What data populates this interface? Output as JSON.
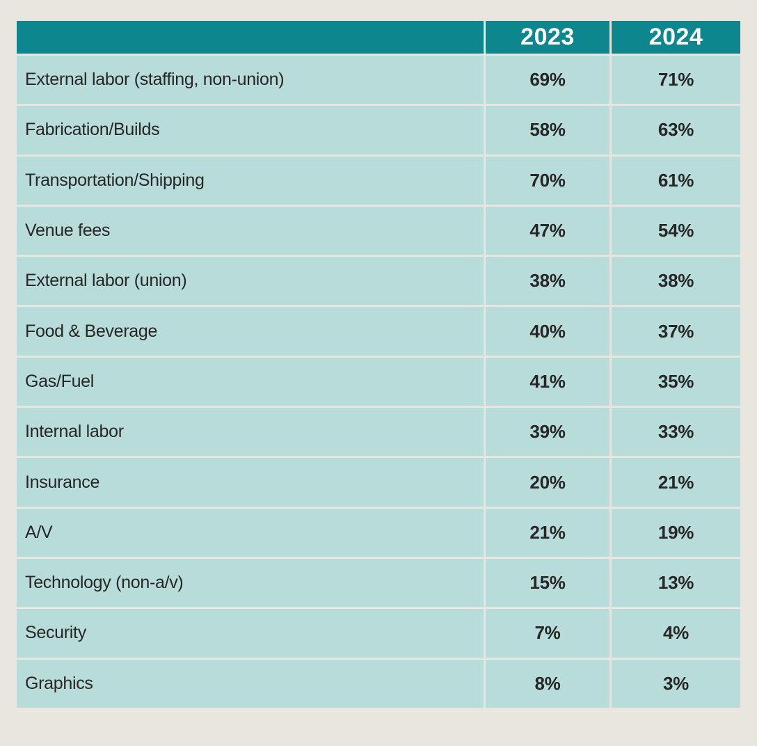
{
  "colors": {
    "header_bg": "#0e868d",
    "row_bg": "#b8dcda",
    "page_bg": "#e8e6df",
    "grid_line": "#ffffff",
    "header_text": "#ffffff",
    "body_text": "#262626"
  },
  "table": {
    "columns": {
      "category": "",
      "col_2023": "2023",
      "col_2024": "2024"
    },
    "rows": [
      {
        "label": "External labor (staffing, non-union)",
        "y2023": "69%",
        "y2024": "71%"
      },
      {
        "label": "Fabrication/Builds",
        "y2023": "58%",
        "y2024": "63%"
      },
      {
        "label": "Transportation/Shipping",
        "y2023": "70%",
        "y2024": "61%"
      },
      {
        "label": "Venue fees",
        "y2023": "47%",
        "y2024": "54%"
      },
      {
        "label": "External labor (union)",
        "y2023": "38%",
        "y2024": "38%"
      },
      {
        "label": "Food & Beverage",
        "y2023": "40%",
        "y2024": "37%"
      },
      {
        "label": "Gas/Fuel",
        "y2023": "41%",
        "y2024": "35%"
      },
      {
        "label": "Internal labor",
        "y2023": "39%",
        "y2024": "33%"
      },
      {
        "label": "Insurance",
        "y2023": "20%",
        "y2024": "21%"
      },
      {
        "label": "A/V",
        "y2023": "21%",
        "y2024": "19%"
      },
      {
        "label": "Technology (non-a/v)",
        "y2023": "15%",
        "y2024": "13%"
      },
      {
        "label": "Security",
        "y2023": "7%",
        "y2024": "4%"
      },
      {
        "label": "Graphics",
        "y2023": "8%",
        "y2024": "3%"
      }
    ]
  },
  "chart_data": {
    "type": "table",
    "title": "",
    "categories": [
      "External labor (staffing, non-union)",
      "Fabrication/Builds",
      "Transportation/Shipping",
      "Venue fees",
      "External labor (union)",
      "Food & Beverage",
      "Gas/Fuel",
      "Internal labor",
      "Insurance",
      "A/V",
      "Technology (non-a/v)",
      "Security",
      "Graphics"
    ],
    "series": [
      {
        "name": "2023",
        "values": [
          69,
          58,
          70,
          47,
          38,
          40,
          41,
          39,
          20,
          21,
          15,
          7,
          8
        ]
      },
      {
        "name": "2024",
        "values": [
          71,
          63,
          61,
          54,
          38,
          37,
          35,
          33,
          21,
          19,
          13,
          4,
          3
        ]
      }
    ],
    "value_unit": "%"
  }
}
